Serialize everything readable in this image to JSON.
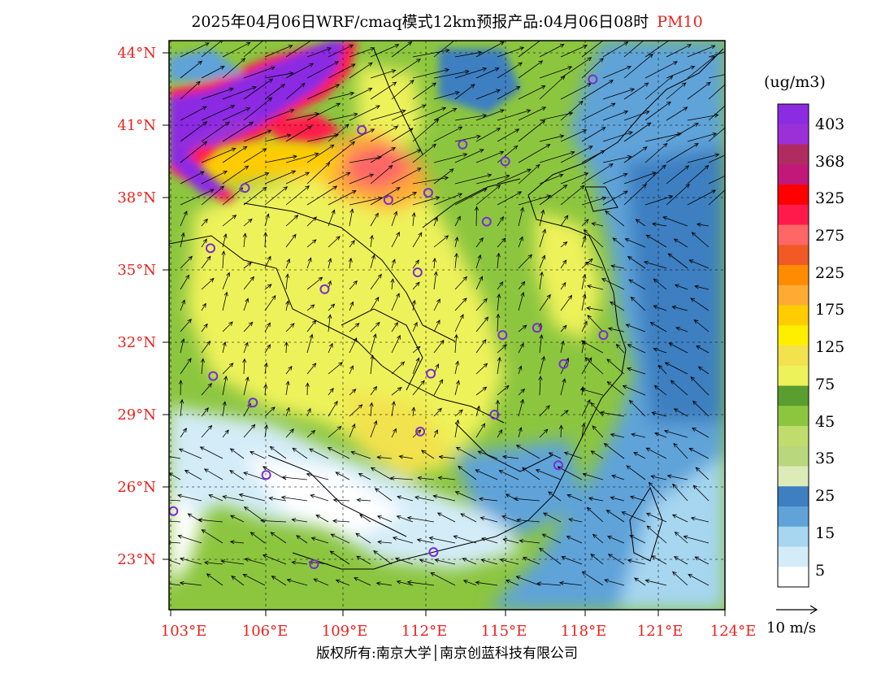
{
  "title": {
    "main": "2025年04月06日WRF/cmaq模式12km预报产品:04月06日08时",
    "variable": "PM10"
  },
  "axes": {
    "lat_labels": [
      "44°N",
      "41°N",
      "38°N",
      "35°N",
      "32°N",
      "29°N",
      "26°N",
      "23°N"
    ],
    "lon_labels": [
      "103°E",
      "106°E",
      "109°E",
      "112°E",
      "115°E",
      "118°E",
      "121°E",
      "124°E"
    ],
    "lat_range": [
      21,
      44.5
    ],
    "lon_range": [
      103,
      124
    ]
  },
  "colorbar": {
    "unit": "(ug/m3)",
    "labels": [
      "403",
      "368",
      "325",
      "275",
      "225",
      "175",
      "125",
      "75",
      "45",
      "35",
      "25",
      "15",
      "5"
    ],
    "colors": [
      "#8b2be2",
      "#9b30d8",
      "#b02c60",
      "#c2187a",
      "#ff0000",
      "#ff1a4b",
      "#ff6666",
      "#f15a24",
      "#ff8c00",
      "#ffaa33",
      "#ffcc00",
      "#ffee00",
      "#f2e24d",
      "#eef25a",
      "#5a9e2f",
      "#8cc63f",
      "#c0dc6c",
      "#b9d77c",
      "#dcebb8",
      "#3d7fc1",
      "#5fa3d9",
      "#a6d6f0",
      "#d3ecf8",
      "#ffffff"
    ]
  },
  "vector_legend": {
    "label": "10 m/s"
  },
  "copyright": "版权所有:南京大学│南京创蓝科技有限公司",
  "stations": [
    {
      "lon": 118.9,
      "lat": 42.9
    },
    {
      "lon": 110.2,
      "lat": 40.8
    },
    {
      "lon": 114.0,
      "lat": 40.2
    },
    {
      "lon": 115.6,
      "lat": 39.5
    },
    {
      "lon": 105.8,
      "lat": 38.4
    },
    {
      "lon": 112.7,
      "lat": 38.2
    },
    {
      "lon": 111.2,
      "lat": 37.9
    },
    {
      "lon": 114.9,
      "lat": 37.0
    },
    {
      "lon": 104.5,
      "lat": 35.9
    },
    {
      "lon": 112.3,
      "lat": 34.9
    },
    {
      "lon": 108.8,
      "lat": 34.2
    },
    {
      "lon": 116.8,
      "lat": 32.6
    },
    {
      "lon": 115.5,
      "lat": 32.3
    },
    {
      "lon": 119.3,
      "lat": 32.3
    },
    {
      "lon": 117.8,
      "lat": 31.1
    },
    {
      "lon": 104.6,
      "lat": 30.6
    },
    {
      "lon": 112.8,
      "lat": 30.7
    },
    {
      "lon": 106.1,
      "lat": 29.5
    },
    {
      "lon": 115.2,
      "lat": 29.0
    },
    {
      "lon": 112.4,
      "lat": 28.3
    },
    {
      "lon": 106.6,
      "lat": 26.5
    },
    {
      "lon": 117.6,
      "lat": 26.9
    },
    {
      "lon": 103.1,
      "lat": 25.0
    },
    {
      "lon": 112.9,
      "lat": 23.3
    },
    {
      "lon": 108.4,
      "lat": 22.8
    }
  ]
}
